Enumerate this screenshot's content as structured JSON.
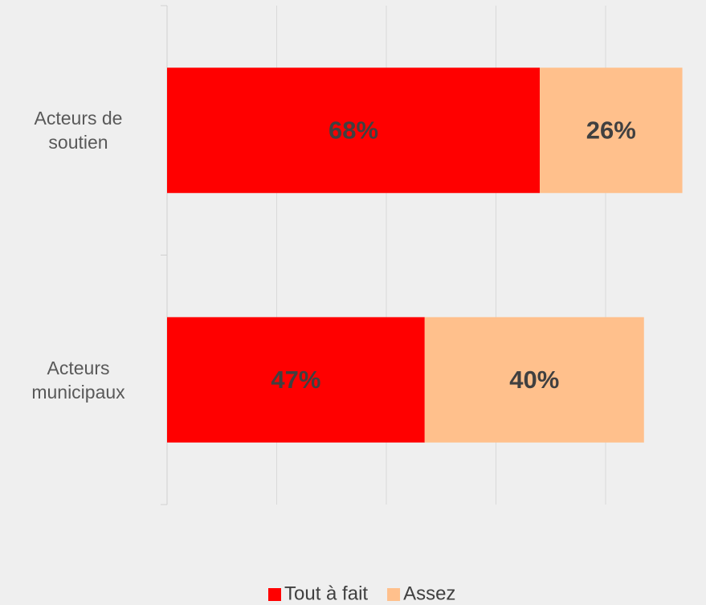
{
  "chart_data": {
    "type": "stacked_barh",
    "categories": [
      "Acteurs de soutien",
      "Acteurs municipaux"
    ],
    "series": [
      {
        "name": "Tout à fait",
        "color": "#ff0000",
        "values": [
          68,
          47
        ],
        "value_labels": [
          "68%",
          "47%"
        ]
      },
      {
        "name": "Assez",
        "color": "#ffc08c",
        "values": [
          26,
          40
        ],
        "value_labels": [
          "26%",
          "40%"
        ]
      }
    ],
    "xlim": [
      0,
      100
    ],
    "xticks": [
      0,
      20,
      40,
      60,
      80
    ],
    "grid": true,
    "legend": "bottom"
  }
}
